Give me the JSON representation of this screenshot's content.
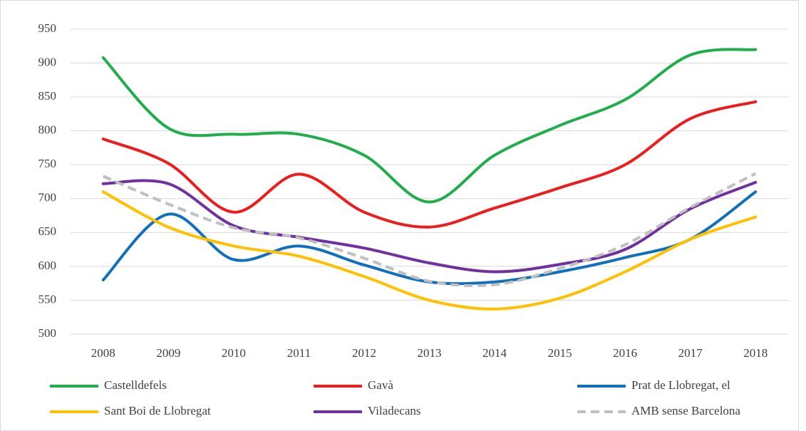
{
  "chart_data": {
    "type": "line",
    "categories": [
      "2008",
      "2009",
      "2010",
      "2011",
      "2012",
      "2013",
      "2014",
      "2015",
      "2016",
      "2017",
      "2018"
    ],
    "series": [
      {
        "name": "Castelldefels",
        "color": "#1fae4b",
        "values": [
          908,
          804,
          795,
          795,
          764,
          695,
          764,
          808,
          846,
          912,
          920
        ]
      },
      {
        "name": "Gavà",
        "color": "#ee1c1c",
        "values": [
          788,
          752,
          680,
          736,
          680,
          658,
          686,
          716,
          750,
          818,
          843
        ]
      },
      {
        "name": "Prat de Llobregat, el",
        "color": "#1170bd",
        "values": [
          580,
          677,
          610,
          630,
          602,
          577,
          577,
          592,
          613,
          640,
          710
        ]
      },
      {
        "name": "Sant Boi de Llobregat",
        "color": "#ffc000",
        "values": [
          710,
          658,
          630,
          615,
          585,
          550,
          537,
          553,
          592,
          640,
          673
        ]
      },
      {
        "name": "Viladecans",
        "color": "#7030a0",
        "values": [
          722,
          722,
          660,
          643,
          627,
          605,
          592,
          603,
          625,
          685,
          724
        ]
      },
      {
        "name": "AMB sense Barcelona",
        "color": "#bfbfbf",
        "dashed": true,
        "values": [
          733,
          692,
          657,
          642,
          612,
          578,
          573,
          597,
          632,
          687,
          737
        ]
      }
    ],
    "ylim": [
      500,
      950
    ],
    "yticks": [
      500,
      550,
      600,
      650,
      700,
      750,
      800,
      850,
      900,
      950
    ],
    "grid": true,
    "legend": "bottom"
  }
}
